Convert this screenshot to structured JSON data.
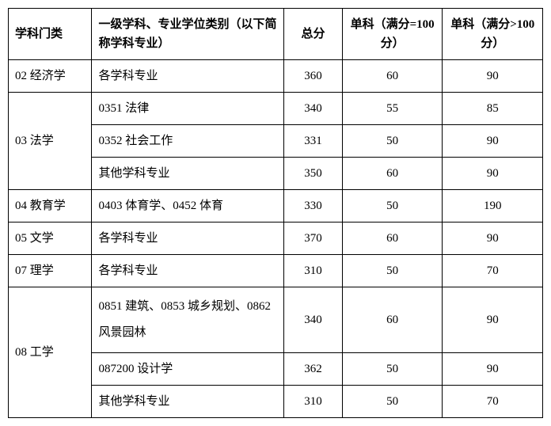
{
  "table": {
    "headers": {
      "category": "学科门类",
      "subject": "一级学科、专业学位类别（以下简称学科专业）",
      "total": "总分",
      "single100": "单科（满分=100 分）",
      "singleOver100": "单科（满分>100 分）"
    },
    "rows": [
      {
        "category": "02 经济学",
        "subject": "各学科专业",
        "total": "360",
        "s100": "60",
        "sOver": "90",
        "catRowspan": 1
      },
      {
        "category": "03 法学",
        "subject": "0351 法律",
        "total": "340",
        "s100": "55",
        "sOver": "85",
        "catRowspan": 3
      },
      {
        "subject": "0352 社会工作",
        "total": "331",
        "s100": "50",
        "sOver": "90"
      },
      {
        "subject": "其他学科专业",
        "total": "350",
        "s100": "60",
        "sOver": "90"
      },
      {
        "category": "04 教育学",
        "subject": "0403 体育学、0452 体育",
        "total": "330",
        "s100": "50",
        "sOver": "190",
        "catRowspan": 1
      },
      {
        "category": "05 文学",
        "subject": "各学科专业",
        "total": "370",
        "s100": "60",
        "sOver": "90",
        "catRowspan": 1
      },
      {
        "category": "07 理学",
        "subject": "各学科专业",
        "total": "310",
        "s100": "50",
        "sOver": "70",
        "catRowspan": 1
      },
      {
        "category": "08 工学",
        "subject": "0851 建筑、0853 城乡规划、0862 风景园林",
        "total": "340",
        "s100": "60",
        "sOver": "90",
        "catRowspan": 3,
        "tall": true
      },
      {
        "subject": "087200 设计学",
        "total": "362",
        "s100": "50",
        "sOver": "90"
      },
      {
        "subject": "其他学科专业",
        "total": "310",
        "s100": "50",
        "sOver": "70"
      }
    ],
    "styling": {
      "border_color": "#000000",
      "background_color": "#ffffff",
      "text_color": "#000000",
      "font_family": "SimSun",
      "header_fontsize": 15,
      "cell_fontsize": 15,
      "col_widths": {
        "category": 100,
        "subject": 230,
        "total": 70,
        "single100": 120,
        "singleOver100": 120
      }
    }
  }
}
